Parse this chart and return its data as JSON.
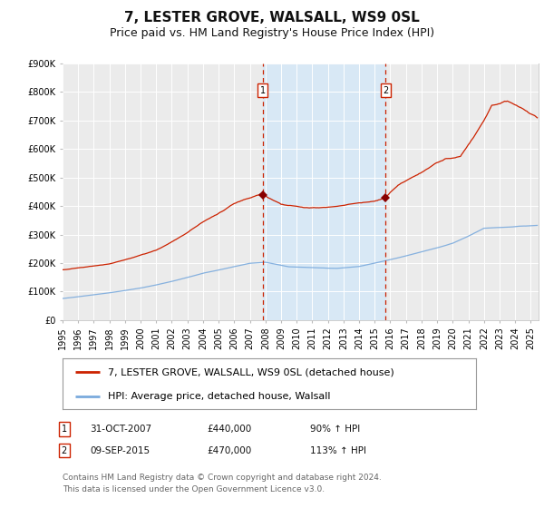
{
  "title": "7, LESTER GROVE, WALSALL, WS9 0SL",
  "subtitle": "Price paid vs. HM Land Registry's House Price Index (HPI)",
  "background_color": "#ffffff",
  "plot_bg_color": "#ebebeb",
  "hpi_line_color": "#7aaadd",
  "price_line_color": "#cc2200",
  "shade_color": "#d8e8f5",
  "marker_color": "#880000",
  "dashed_line_color": "#cc2200",
  "transaction1": {
    "date_num": 2007.83,
    "price": 440000,
    "label": "1",
    "date_str": "31-OCT-2007",
    "pct": "90%"
  },
  "transaction2": {
    "date_num": 2015.69,
    "price": 470000,
    "label": "2",
    "date_str": "09-SEP-2015",
    "pct": "113%"
  },
  "xmin": 1995.0,
  "xmax": 2025.5,
  "ymin": 0,
  "ymax": 900000,
  "yticks": [
    0,
    100000,
    200000,
    300000,
    400000,
    500000,
    600000,
    700000,
    800000,
    900000
  ],
  "ytick_labels": [
    "£0",
    "£100K",
    "£200K",
    "£300K",
    "£400K",
    "£500K",
    "£600K",
    "£700K",
    "£800K",
    "£900K"
  ],
  "xticks": [
    1995,
    1996,
    1997,
    1998,
    1999,
    2000,
    2001,
    2002,
    2003,
    2004,
    2005,
    2006,
    2007,
    2008,
    2009,
    2010,
    2011,
    2012,
    2013,
    2014,
    2015,
    2016,
    2017,
    2018,
    2019,
    2020,
    2021,
    2022,
    2023,
    2024,
    2025
  ],
  "legend_label_price": "7, LESTER GROVE, WALSALL, WS9 0SL (detached house)",
  "legend_label_hpi": "HPI: Average price, detached house, Walsall",
  "footnote": "Contains HM Land Registry data © Crown copyright and database right 2024.\nThis data is licensed under the Open Government Licence v3.0.",
  "title_fontsize": 11,
  "subtitle_fontsize": 9,
  "tick_fontsize": 7,
  "legend_fontsize": 8,
  "footnote_fontsize": 6.5
}
